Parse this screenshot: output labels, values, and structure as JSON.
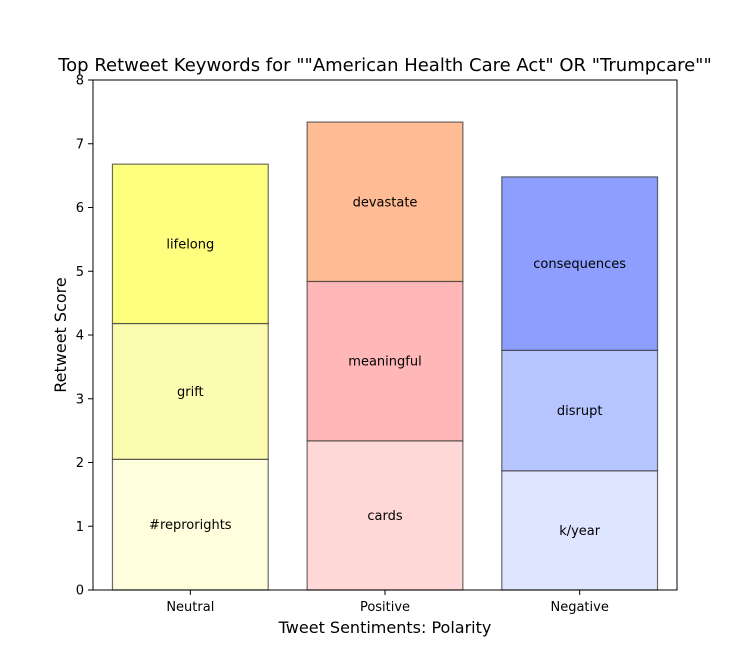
{
  "chart_data": {
    "type": "bar",
    "stacked": true,
    "title": "Top Retweet Keywords for \"\"American Health Care Act\" OR \"Trumpcare\"\"",
    "xlabel": "Tweet Sentiments: Polarity",
    "ylabel": "Retweet Score",
    "ylim": [
      0,
      8
    ],
    "yticks": [
      0,
      1,
      2,
      3,
      4,
      5,
      6,
      7,
      8
    ],
    "grid": false,
    "categories": [
      "Neutral",
      "Positive",
      "Negative"
    ],
    "stacks": [
      {
        "category": "Neutral",
        "segments": [
          {
            "label": "#reprorights",
            "value": 2.05,
            "color": "#ffffdd"
          },
          {
            "label": "grift",
            "value": 2.13,
            "color": "#fcfcb0"
          },
          {
            "label": "lifelong",
            "value": 2.5,
            "color": "#ffff7f"
          }
        ]
      },
      {
        "category": "Positive",
        "segments": [
          {
            "label": "cards",
            "value": 2.34,
            "color": "#ffd7d7"
          },
          {
            "label": "meaningful",
            "value": 2.5,
            "color": "#ffb7b7"
          },
          {
            "label": "devastate",
            "value": 2.5,
            "color": "#ffbb93"
          }
        ]
      },
      {
        "category": "Negative",
        "segments": [
          {
            "label": "k/year",
            "value": 1.87,
            "color": "#dee5ff"
          },
          {
            "label": "disrupt",
            "value": 1.89,
            "color": "#b6c5ff"
          },
          {
            "label": "consequences",
            "value": 2.72,
            "color": "#8e9eff"
          }
        ]
      }
    ]
  }
}
